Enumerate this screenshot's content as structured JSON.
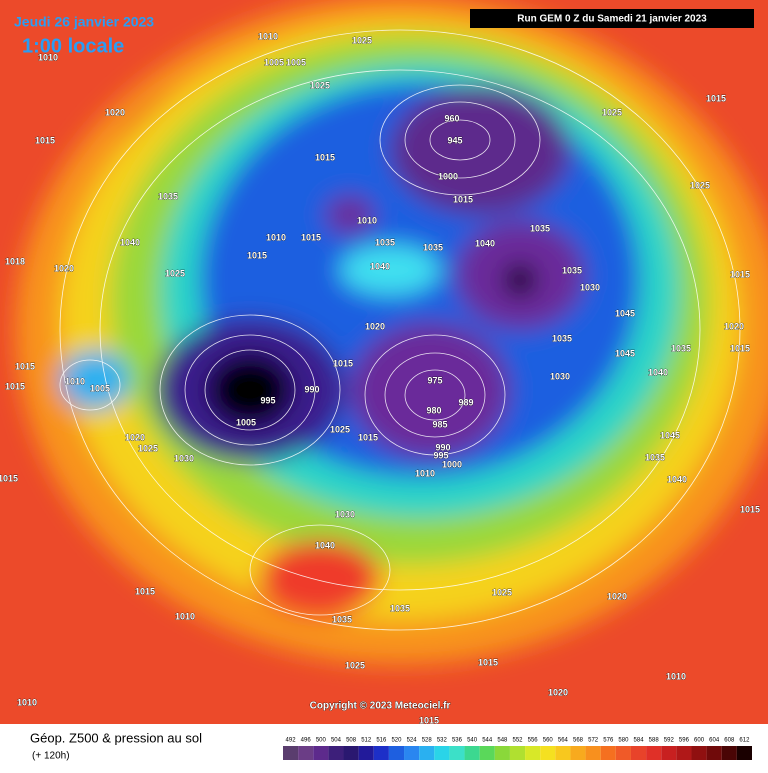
{
  "header": {
    "date": "Jeudi 26 janvier 2023",
    "time": "1:00 locale",
    "run": "Run GEM 0 Z du Samedi 21 janvier 2023"
  },
  "map": {
    "pressure_labels": [
      "1010",
      "1025",
      "1010",
      "1005",
      "1005",
      "1025",
      "1015",
      "1020",
      "1015",
      "1025",
      "960",
      "945",
      "1000",
      "1015",
      "1015",
      "1035",
      "1010",
      "1040",
      "1010",
      "1015",
      "1035",
      "1035",
      "1040",
      "1035",
      "1035",
      "1030",
      "1040",
      "1025",
      "1015",
      "1020",
      "1018",
      "1045",
      "1035",
      "1045",
      "1040",
      "1020",
      "1035",
      "975",
      "980",
      "985",
      "989",
      "995",
      "1005",
      "990",
      "1015",
      "1025",
      "1015",
      "1030",
      "1015",
      "1010",
      "1005",
      "1015",
      "1020",
      "1025",
      "1030",
      "990",
      "995",
      "1000",
      "1010",
      "1045",
      "1035",
      "1040",
      "1015",
      "1030",
      "1040",
      "1015",
      "1010",
      "1035",
      "1025",
      "1020",
      "1035",
      "1025",
      "1015",
      "1010",
      "1020",
      "1010",
      "1015",
      "1015",
      "1020",
      "1015",
      "1025",
      "1015"
    ]
  },
  "footer": {
    "title": "Géop. Z500 & pression au sol",
    "subtitle": "(+ 120h)",
    "copyright": "Copyright © 2023 Meteociel.fr"
  },
  "legend": {
    "values": [
      "492",
      "496",
      "500",
      "504",
      "508",
      "512",
      "516",
      "520",
      "524",
      "528",
      "532",
      "536",
      "540",
      "544",
      "548",
      "552",
      "556",
      "560",
      "564",
      "568",
      "572",
      "576",
      "580",
      "584",
      "588",
      "592",
      "596",
      "600",
      "604",
      "608",
      "612"
    ],
    "colors": [
      "#5a3d6e",
      "#6b3d86",
      "#5d2a8c",
      "#3d1f7a",
      "#2a1870",
      "#221a9a",
      "#1d2fc8",
      "#1e5fe0",
      "#2a86f0",
      "#2ab0f0",
      "#2ad4e8",
      "#3ce0c8",
      "#3cd890",
      "#5ad85a",
      "#8ad83a",
      "#b0e030",
      "#d8e828",
      "#f5e020",
      "#f8c81e",
      "#f8aa1e",
      "#f8901e",
      "#f57020",
      "#f05a28",
      "#e8432a",
      "#e03028",
      "#c82020",
      "#b01818",
      "#901010",
      "#700a0a",
      "#4a0505",
      "#1a0000"
    ]
  }
}
